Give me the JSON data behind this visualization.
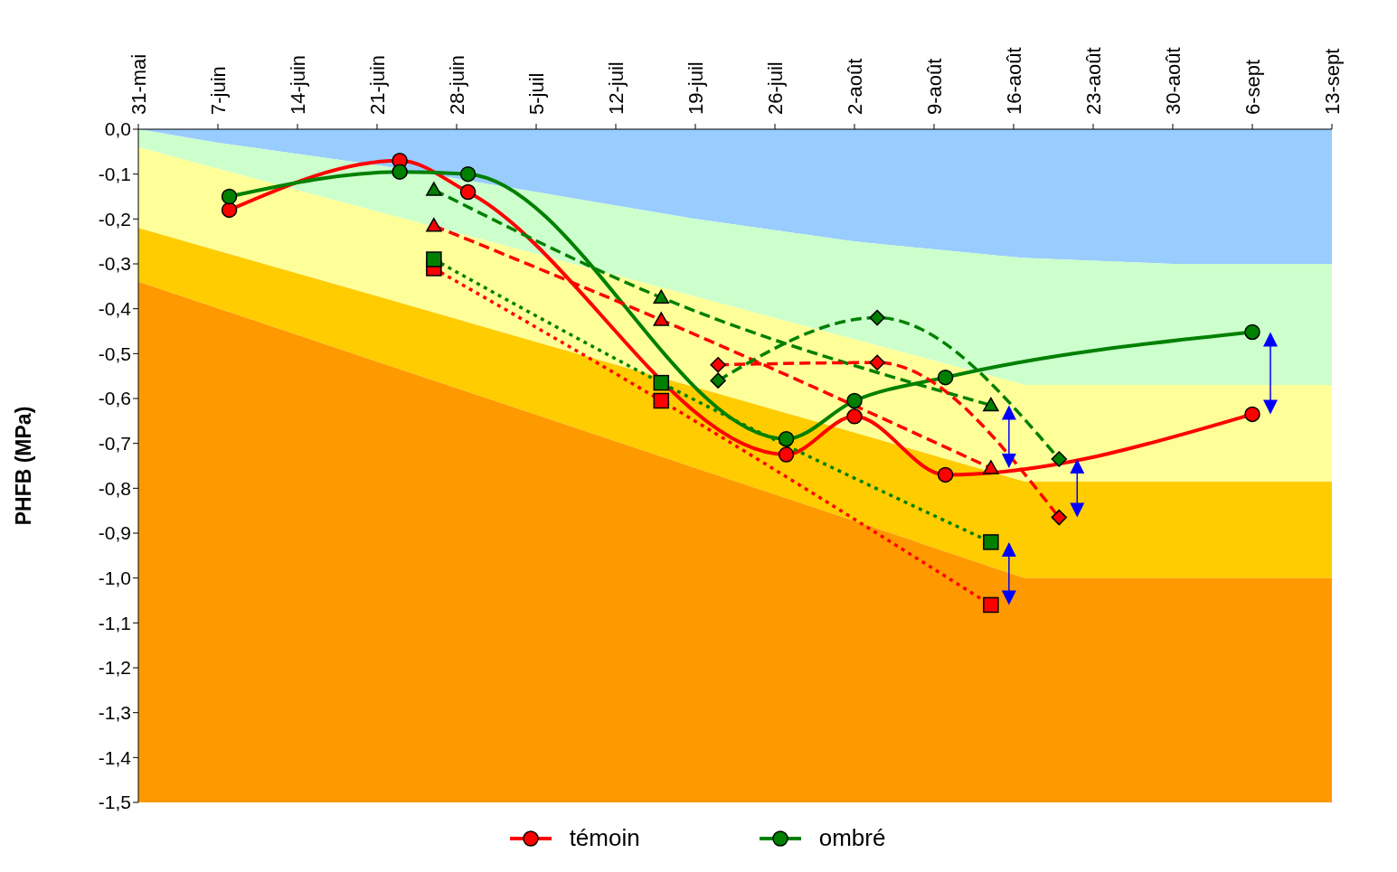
{
  "chart_data": {
    "type": "line",
    "ylabel": "PHFB (MPa)",
    "xlim": [
      "--05-31",
      "--09-13"
    ],
    "xticks": [
      {
        "value": "--05-31",
        "label": "31-mai"
      },
      {
        "value": "--06-07",
        "label": "7-juin"
      },
      {
        "value": "--06-14",
        "label": "14-juin"
      },
      {
        "value": "--06-21",
        "label": "21-juin"
      },
      {
        "value": "--06-28",
        "label": "28-juin"
      },
      {
        "value": "--07-05",
        "label": "5-juil"
      },
      {
        "value": "--07-12",
        "label": "12-juil"
      },
      {
        "value": "--07-19",
        "label": "19-juil"
      },
      {
        "value": "--07-26",
        "label": "26-juil"
      },
      {
        "value": "--08-02",
        "label": "2-août"
      },
      {
        "value": "--08-09",
        "label": "9-août"
      },
      {
        "value": "--08-16",
        "label": "16-août"
      },
      {
        "value": "--08-23",
        "label": "23-août"
      },
      {
        "value": "--08-30",
        "label": "30-août"
      },
      {
        "value": "--09-06",
        "label": "6-sept"
      },
      {
        "value": "--09-13",
        "label": "13-sept"
      }
    ],
    "ylim": [
      -1.5,
      0
    ],
    "yticks": [
      {
        "value": 0,
        "label": "0,0"
      },
      {
        "value": -0.1,
        "label": "-0,1"
      },
      {
        "value": -0.2,
        "label": "-0,2"
      },
      {
        "value": -0.3,
        "label": "-0,3"
      },
      {
        "value": -0.4,
        "label": "-0,4"
      },
      {
        "value": -0.5,
        "label": "-0,5"
      },
      {
        "value": -0.6,
        "label": "-0,6"
      },
      {
        "value": -0.7,
        "label": "-0,7"
      },
      {
        "value": -0.8,
        "label": "-0,8"
      },
      {
        "value": -0.9,
        "label": "-0,9"
      },
      {
        "value": -1.0,
        "label": "-1,0"
      },
      {
        "value": -1.1,
        "label": "-1,1"
      },
      {
        "value": -1.2,
        "label": "-1,2"
      },
      {
        "value": -1.3,
        "label": "-1,3"
      },
      {
        "value": -1.4,
        "label": "-1,4"
      },
      {
        "value": -1.5,
        "label": "-1,5"
      }
    ],
    "grid": false,
    "legend": "bottom",
    "stacked": true,
    "x": [
      "--05-31",
      "--06-07",
      "--06-21",
      "--07-05",
      "--07-19",
      "--08-02",
      "--08-16",
      "--08-17",
      "--08-30",
      "--09-13"
    ],
    "series": [
      {
        "type": "area",
        "color": "#99ccff",
        "values": [
          0,
          -0.03,
          -0.08,
          -0.14,
          -0.2,
          -0.25,
          -0.285,
          -0.287,
          -0.3,
          -0.3
        ]
      },
      {
        "type": "area",
        "color": "#ccffcc",
        "values": [
          -0.04,
          -0.058,
          -0.103,
          -0.138,
          -0.173,
          -0.218,
          -0.278,
          -0.283,
          -0.27,
          -0.27
        ]
      },
      {
        "type": "area",
        "color": "#ffff99",
        "values": [
          -0.18,
          -0.183,
          -0.189,
          -0.196,
          -0.202,
          -0.208,
          -0.215,
          -0.215,
          -0.215,
          -0.215
        ]
      },
      {
        "type": "area",
        "color": "#ffcc00",
        "values": [
          -0.12,
          -0.128,
          -0.146,
          -0.162,
          -0.18,
          -0.197,
          -0.214,
          -0.215,
          -0.215,
          -0.215
        ]
      },
      {
        "type": "area",
        "color": "#ff9900",
        "values": [
          -1.16,
          -1.101,
          -0.982,
          -0.864,
          -0.745,
          -0.627,
          -0.508,
          -0.5,
          -0.5,
          -0.5
        ]
      },
      {
        "name": "témoin",
        "color": "#ff0000",
        "marker": "circle",
        "line_style": "solid",
        "x": [
          "--06-08",
          "--06-23",
          "--06-29",
          "--07-27",
          "--08-02",
          "--08-10",
          "--09-06"
        ],
        "values": [
          -0.18,
          -0.07,
          -0.14,
          -0.725,
          -0.64,
          -0.77,
          -0.635
        ]
      },
      {
        "name": "ombré",
        "color": "#008000",
        "marker": "circle",
        "line_style": "solid",
        "x": [
          "--06-08",
          "--06-23",
          "--06-29",
          "--07-27",
          "--08-02",
          "--08-10",
          "--09-06"
        ],
        "values": [
          -0.15,
          -0.095,
          -0.1,
          -0.69,
          -0.605,
          -0.553,
          -0.452
        ]
      },
      {
        "color": "#ff0000",
        "marker": "triangle",
        "line_style": "dashed",
        "x": [
          "--06-26",
          "--07-16",
          "--08-14"
        ],
        "values": [
          -0.215,
          -0.425,
          -0.755
        ]
      },
      {
        "color": "#008000",
        "marker": "triangle",
        "line_style": "dashed",
        "x": [
          "--06-26",
          "--07-16",
          "--08-14"
        ],
        "values": [
          -0.135,
          -0.375,
          -0.615
        ]
      },
      {
        "color": "#ff0000",
        "marker": "square",
        "line_style": "dotted",
        "x": [
          "--06-26",
          "--07-16",
          "--08-14"
        ],
        "values": [
          -0.31,
          -0.605,
          -1.06
        ]
      },
      {
        "color": "#008000",
        "marker": "square",
        "line_style": "dotted",
        "x": [
          "--06-26",
          "--07-16",
          "--08-14"
        ],
        "values": [
          -0.29,
          -0.565,
          -0.92
        ]
      },
      {
        "color": "#ff0000",
        "marker": "diamond",
        "line_style": "dashed",
        "x": [
          "--07-21",
          "--08-04",
          "--08-20"
        ],
        "values": [
          -0.525,
          -0.52,
          -0.865
        ]
      },
      {
        "color": "#008000",
        "marker": "diamond",
        "line_style": "dashed",
        "x": [
          "--07-21",
          "--08-04",
          "--08-20"
        ],
        "values": [
          -0.56,
          -0.42,
          -0.735
        ]
      }
    ]
  }
}
